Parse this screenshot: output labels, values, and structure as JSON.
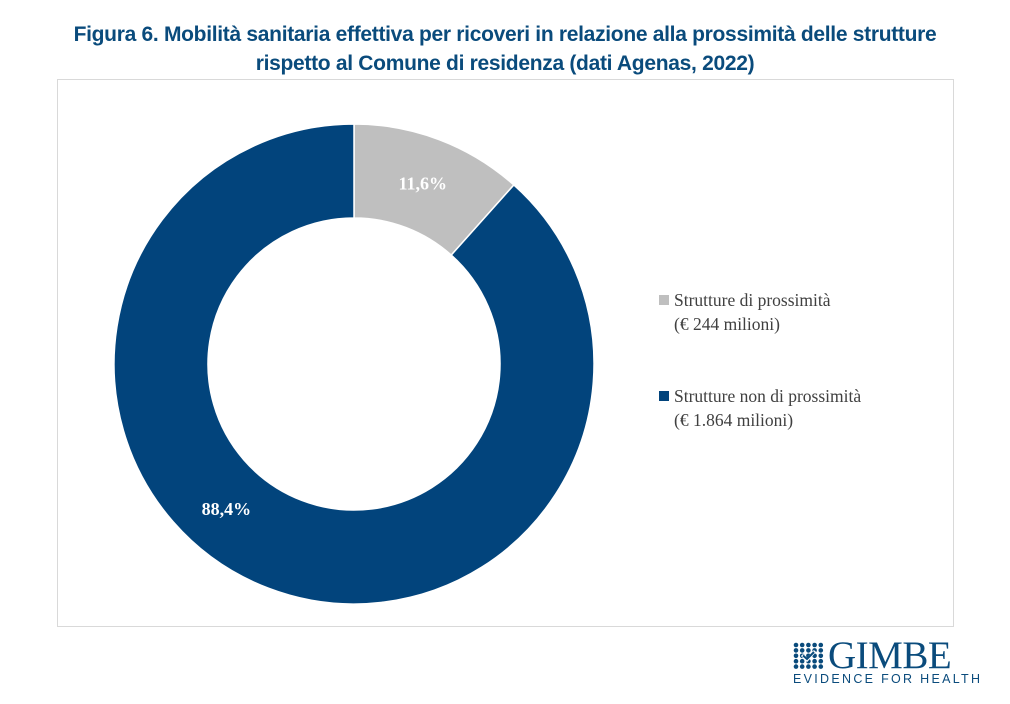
{
  "title_line1": "Figura 6. Mobilità sanitaria effettiva per ricoveri in relazione alla prossimità delle strutture",
  "title_line2": "rispetto al Comune di residenza (dati Agenas, 2022)",
  "chart_data": {
    "type": "pie",
    "variant": "donut",
    "title": "Figura 6. Mobilità sanitaria effettiva per ricoveri in relazione alla prossimità delle strutture rispetto al Comune di residenza (dati Agenas, 2022)",
    "categories": [
      "Strutture di prossimità",
      "Strutture non di prossimità"
    ],
    "values": [
      11.6,
      88.4
    ],
    "amounts_eur_millions": [
      244,
      1864
    ],
    "data_labels": [
      "11,6%",
      "88,4%"
    ],
    "colors": [
      "#bfbfbf",
      "#02447c"
    ],
    "legend_position": "right",
    "legend": [
      {
        "label": "Strutture di prossimità",
        "sublabel": "(€ 244 milioni)",
        "color": "#bfbfbf"
      },
      {
        "label": "Strutture non di prossimità",
        "sublabel": "(€ 1.864 milioni)",
        "color": "#02447c"
      }
    ]
  },
  "logo": {
    "name": "GIMBE",
    "tagline": "EVIDENCE FOR HEALTH",
    "color": "#0a4b7c"
  }
}
